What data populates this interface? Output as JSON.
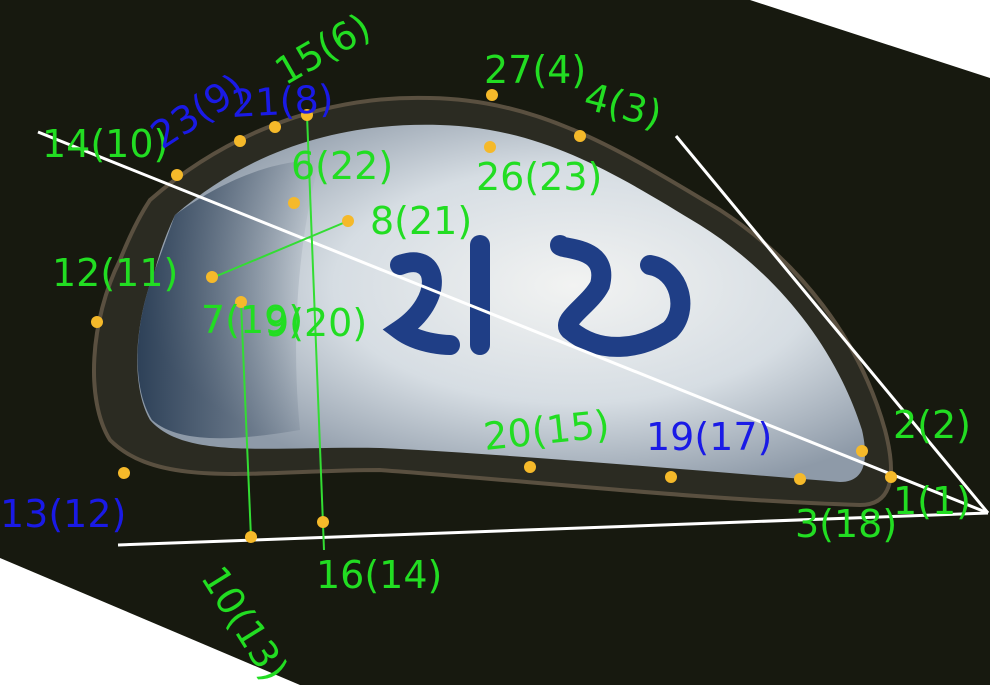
{
  "image": {
    "subject": "mussel-shell-interior",
    "shell_label": "412",
    "colors": {
      "background": "#17190f",
      "label_green": "#22dd22",
      "label_blue": "#1a1ae6",
      "landmark_dot": "#f5b92a",
      "guide_line": "#ffffff",
      "measure_line": "#33dd33",
      "shell_pearl": "#dfe3e6",
      "shell_rim": "#2a2a22"
    }
  },
  "landmarks": [
    {
      "id": "lm-1",
      "label": "1(1)",
      "color": "green"
    },
    {
      "id": "lm-2",
      "label": "2(2)",
      "color": "green"
    },
    {
      "id": "lm-3",
      "label": "3(18)",
      "color": "green"
    },
    {
      "id": "lm-4",
      "label": "4(3)",
      "color": "green"
    },
    {
      "id": "lm-6",
      "label": "6(22)",
      "color": "green"
    },
    {
      "id": "lm-7",
      "label": "7(19)",
      "color": "green"
    },
    {
      "id": "lm-8",
      "label": "8(21)",
      "color": "green"
    },
    {
      "id": "lm-9",
      "label": "9(20)",
      "color": "green"
    },
    {
      "id": "lm-10",
      "label": "10(13)",
      "color": "green"
    },
    {
      "id": "lm-12",
      "label": "12(11)",
      "color": "green"
    },
    {
      "id": "lm-13",
      "label": "13(12)",
      "color": "blue"
    },
    {
      "id": "lm-14",
      "label": "14(10)",
      "color": "green"
    },
    {
      "id": "lm-15",
      "label": "15(6)",
      "color": "green"
    },
    {
      "id": "lm-16",
      "label": "16(14)",
      "color": "green"
    },
    {
      "id": "lm-19",
      "label": "19(17)",
      "color": "blue"
    },
    {
      "id": "lm-20",
      "label": "20(15)",
      "color": "green"
    },
    {
      "id": "lm-21",
      "label": "21(8)",
      "color": "blue"
    },
    {
      "id": "lm-23",
      "label": "23(9)",
      "color": "blue"
    },
    {
      "id": "lm-26",
      "label": "26(23)",
      "color": "green"
    },
    {
      "id": "lm-27",
      "label": "27(4)",
      "color": "green"
    }
  ]
}
